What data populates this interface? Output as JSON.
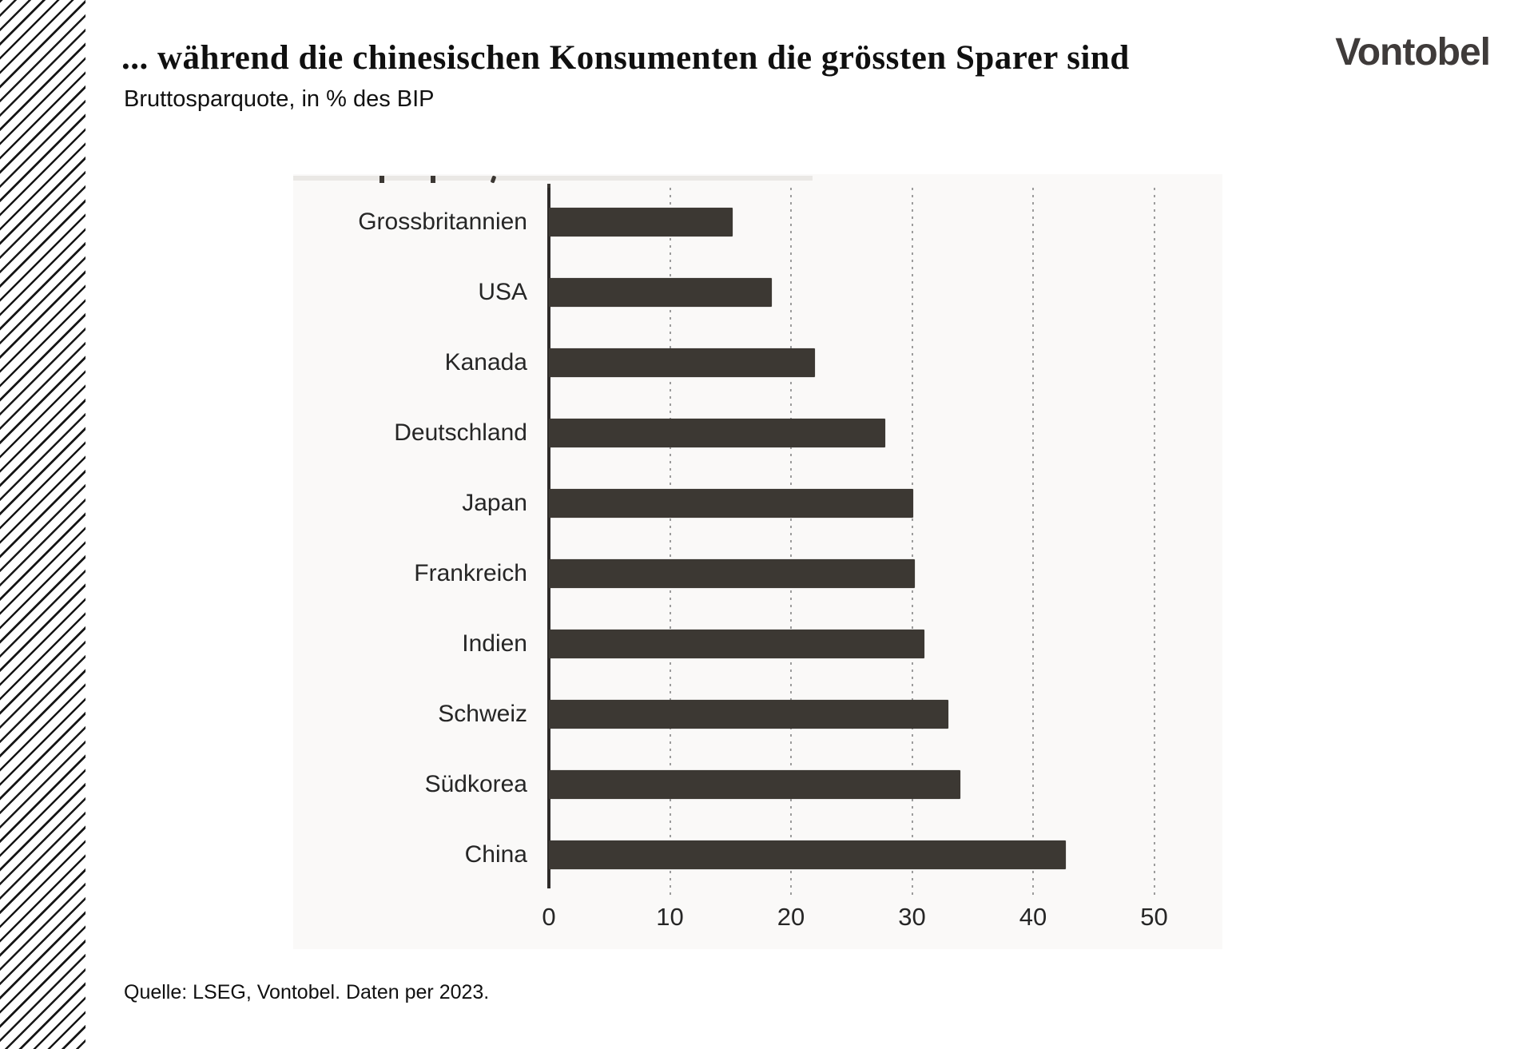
{
  "header": {
    "title": "... während die chinesischen Konsumenten die grössten Sparer sind",
    "subtitle": "Bruttosparquote, in % des BIP",
    "logo": "Vontobel"
  },
  "footer": {
    "source": "Quelle: LSEG, Vontobel. Daten per 2023."
  },
  "colors": {
    "bar": "#3c3833",
    "axis": "#2e2b29",
    "gridline": "#9c9c9c",
    "logo": "#3f3b3a",
    "text": "#262626"
  },
  "chart_data": {
    "type": "bar",
    "orientation": "horizontal",
    "title": "Bruttosparquote, in % des BIP",
    "xlabel": "",
    "ylabel": "",
    "unit": "% des BIP",
    "categories": [
      "Grossbritannien",
      "USA",
      "Kanada",
      "Deutschland",
      "Japan",
      "Frankreich",
      "Indien",
      "Schweiz",
      "Südkorea",
      "China"
    ],
    "values": [
      15.2,
      18.4,
      22.0,
      27.8,
      30.1,
      30.2,
      31.0,
      33.0,
      34.0,
      42.7
    ],
    "xlim": [
      0,
      50
    ],
    "xticks": [
      0,
      10,
      20,
      30,
      40,
      50
    ],
    "grid": "dotted-vertical",
    "legend": "none",
    "bar_color": "#3c3833"
  }
}
